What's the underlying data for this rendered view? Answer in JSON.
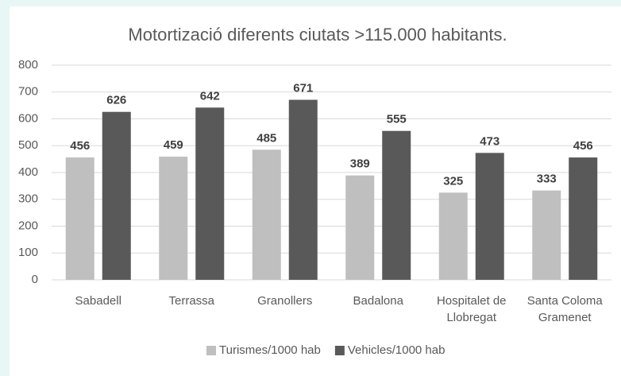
{
  "chart_data": {
    "type": "bar",
    "title": "Motortizació diferents ciutats >115.000 habitants.",
    "categories": [
      "Sabadell",
      "Terrassa",
      "Granollers",
      "Badalona",
      "Hospitalet de Llobregat",
      "Santa Coloma Gramenet"
    ],
    "series": [
      {
        "name": "Turismes/1000 hab",
        "color": "#bfbfbf",
        "values": [
          456,
          459,
          485,
          389,
          325,
          333
        ]
      },
      {
        "name": "Vehicles/1000 hab",
        "color": "#595959",
        "values": [
          626,
          642,
          671,
          555,
          473,
          456
        ]
      }
    ],
    "ylim": [
      0,
      800
    ],
    "yticks": [
      0,
      100,
      200,
      300,
      400,
      500,
      600,
      700,
      800
    ],
    "grid": true,
    "legend": "bottom"
  }
}
